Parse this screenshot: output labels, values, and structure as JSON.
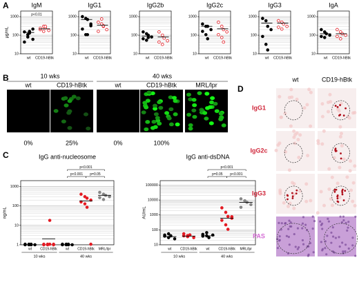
{
  "letters": [
    "A",
    "B",
    "C",
    "D"
  ],
  "chart_data": [
    {
      "type": "dot",
      "title": "IgM",
      "ylabel": "µg/mL",
      "log": true,
      "ylim": [
        10,
        2000
      ],
      "yticks": [
        10,
        100,
        1000
      ],
      "annotation": "p<0.01",
      "groups": [
        {
          "label": "wt",
          "color": "#000000",
          "marker": "filled",
          "values": [
            150,
            80,
            130,
            60,
            40,
            100,
            150,
            200
          ],
          "mean": 140
        },
        {
          "label": "CD19-hBtk",
          "color": "#e31b23",
          "marker": "open",
          "values": [
            200,
            300,
            250,
            180,
            220,
            150,
            280
          ],
          "mean": 220
        }
      ]
    },
    {
      "type": "dot",
      "title": "IgG1",
      "log": true,
      "ylim": [
        10,
        2000
      ],
      "yticks": [
        10,
        100,
        1000
      ],
      "groups": [
        {
          "label": "wt",
          "color": "#000000",
          "marker": "filled",
          "values": [
            1000,
            800,
            700,
            400,
            200,
            100,
            100,
            300
          ],
          "mean": 700
        },
        {
          "label": "CD19-hBtk",
          "color": "#e31b23",
          "marker": "open",
          "values": [
            500,
            400,
            300,
            200,
            150,
            700,
            300
          ],
          "mean": 350
        }
      ]
    },
    {
      "type": "dot",
      "title": "IgG2b",
      "log": true,
      "ylim": [
        10,
        2000
      ],
      "yticks": [
        10,
        100,
        1000
      ],
      "groups": [
        {
          "label": "wt",
          "color": "#000000",
          "marker": "filled",
          "values": [
            150,
            120,
            100,
            80,
            60,
            50,
            70
          ],
          "mean": 90
        },
        {
          "label": "CD19-hBtk",
          "color": "#e31b23",
          "marker": "open",
          "values": [
            150,
            100,
            70,
            50,
            40,
            30
          ],
          "mean": 80
        }
      ]
    },
    {
      "type": "dot",
      "title": "IgG2c",
      "log": true,
      "ylim": [
        10,
        2000
      ],
      "yticks": [
        10,
        100,
        1000
      ],
      "groups": [
        {
          "label": "wt",
          "color": "#000000",
          "marker": "filled",
          "values": [
            400,
            300,
            300,
            200,
            150,
            100,
            60
          ],
          "mean": 300
        },
        {
          "label": "CD19-hBtk",
          "color": "#e31b23",
          "marker": "open",
          "values": [
            500,
            300,
            200,
            150,
            100,
            70,
            40
          ],
          "mean": 220
        }
      ]
    },
    {
      "type": "dot",
      "title": "IgG3",
      "log": true,
      "ylim": [
        10,
        2000
      ],
      "yticks": [
        10,
        100,
        1000
      ],
      "groups": [
        {
          "label": "wt",
          "color": "#000000",
          "marker": "filled",
          "values": [
            800,
            600,
            300,
            200,
            80,
            30,
            15
          ],
          "mean": 450
        },
        {
          "label": "CD19-hBtk",
          "color": "#e31b23",
          "marker": "open",
          "values": [
            600,
            500,
            400,
            300,
            250,
            200
          ],
          "mean": 450
        }
      ]
    },
    {
      "type": "dot",
      "title": "IgA",
      "log": true,
      "ylim": [
        10,
        2000
      ],
      "yticks": [
        10,
        100,
        1000
      ],
      "groups": [
        {
          "label": "wt",
          "color": "#000000",
          "marker": "filled",
          "values": [
            200,
            150,
            120,
            100,
            80,
            70
          ],
          "mean": 120
        },
        {
          "label": "CD19-hBtk",
          "color": "#e31b23",
          "marker": "open",
          "values": [
            200,
            150,
            120,
            100,
            80,
            60
          ],
          "mean": 120
        }
      ]
    },
    {
      "type": "dot",
      "title": "IgG anti-nucleosome",
      "ylabel": "ng/mL",
      "log": true,
      "ylim": [
        1,
        2000
      ],
      "yticks": [
        1,
        10,
        100,
        1000
      ],
      "comparisons": [
        {
          "label": "p<0.001"
        },
        {
          "label": "p<0.001"
        },
        {
          "label": "p=0.05"
        }
      ],
      "spans": [
        {
          "label": "10 wks"
        },
        {
          "label": "40 wks"
        }
      ],
      "groups": [
        {
          "label": "wt",
          "color": "#000000",
          "marker": "filled",
          "values": [
            1,
            1,
            1,
            1,
            1,
            1,
            1
          ],
          "mean": 1
        },
        {
          "label": "CD19-hBtk",
          "color": "#e31b23",
          "marker": "filled",
          "values": [
            1,
            1,
            18,
            1,
            1,
            1,
            1,
            1
          ],
          "mean": 2
        },
        {
          "label": "wt",
          "color": "#000000",
          "marker": "filled",
          "values": [
            1,
            1,
            1,
            1,
            1,
            1,
            1
          ],
          "mean": 1
        },
        {
          "label": "CD19-hBtk",
          "color": "#e31b23",
          "marker": "filled",
          "values": [
            400,
            300,
            250,
            200,
            150,
            120,
            80,
            1
          ],
          "mean": 180
        },
        {
          "label": "MRL/lpr",
          "color": "#888888",
          "marker": "filled",
          "values": [
            500,
            400,
            350,
            300,
            250,
            200
          ],
          "mean": 350
        }
      ]
    },
    {
      "type": "dot",
      "title": "IgG anti-dsDNA",
      "ylabel": "AU/mL",
      "log": true,
      "ylim": [
        10,
        200000
      ],
      "yticks": [
        10,
        100,
        1000,
        10000,
        100000
      ],
      "comparisons": [
        {
          "label": "p<0.001"
        },
        {
          "label": "p=0.05"
        },
        {
          "label": "p<0.001"
        }
      ],
      "spans": [
        {
          "label": "10 wks"
        },
        {
          "label": "40 wks"
        }
      ],
      "groups": [
        {
          "label": "wt",
          "color": "#000000",
          "marker": "filled",
          "values": [
            45,
            30,
            40,
            25,
            35,
            50
          ],
          "mean": 35
        },
        {
          "label": "CD19-hBtk",
          "color": "#e31b23",
          "marker": "filled",
          "values": [
            40,
            35,
            45,
            30,
            50,
            38,
            42
          ],
          "mean": 38
        },
        {
          "label": "wt",
          "color": "#000000",
          "marker": "filled",
          "values": [
            50,
            40,
            30,
            45,
            35,
            60
          ],
          "mean": 40
        },
        {
          "label": "CD19-hBtk",
          "color": "#e31b23",
          "marker": "filled",
          "values": [
            3000,
            1500,
            800,
            600,
            400,
            200,
            100,
            700
          ],
          "mean": 600
        },
        {
          "label": "MRL/lpr",
          "color": "#888888",
          "marker": "filled",
          "values": [
            12000,
            9000,
            7000,
            5000,
            3000,
            8000
          ],
          "mean": 7000
        }
      ]
    }
  ],
  "panel_b": {
    "periods": [
      {
        "label": "10 wks"
      },
      {
        "label": "40 wks"
      }
    ],
    "images": [
      {
        "label": "wt",
        "percent": "0%"
      },
      {
        "label": "CD19-hBtk",
        "percent": "25%"
      },
      {
        "label": "wt",
        "percent": "0%"
      },
      {
        "label": "CD19-hBtk",
        "percent": "100%"
      },
      {
        "label": "MRL/lpr"
      }
    ]
  },
  "panel_d": {
    "columns": [
      "wt",
      "CD19-hBtk"
    ],
    "rows": [
      "IgG1",
      "IgG2c",
      "IgG3",
      "PAS"
    ]
  }
}
